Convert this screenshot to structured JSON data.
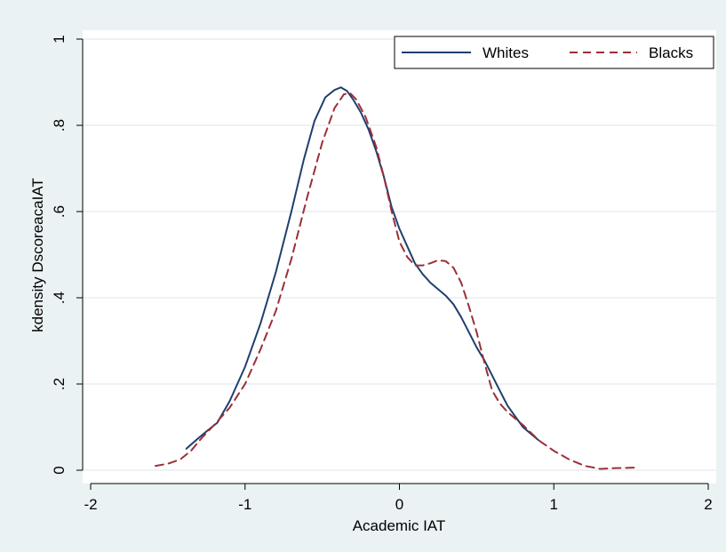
{
  "chart_data": {
    "type": "line",
    "title": "",
    "xlabel": "Academic IAT",
    "ylabel": "kdensity DscoreacaIAT",
    "xlim": [
      -2,
      2
    ],
    "ylim": [
      0,
      1
    ],
    "xticks": [
      {
        "value": -2,
        "label": "-2"
      },
      {
        "value": -1,
        "label": "-1"
      },
      {
        "value": 0,
        "label": "0"
      },
      {
        "value": 1,
        "label": "1"
      },
      {
        "value": 2,
        "label": "2"
      }
    ],
    "yticks": [
      {
        "value": 0,
        "label": "0"
      },
      {
        "value": 0.2,
        "label": ".2"
      },
      {
        "value": 0.4,
        "label": ".4"
      },
      {
        "value": 0.6,
        "label": ".6"
      },
      {
        "value": 0.8,
        "label": ".8"
      },
      {
        "value": 1,
        "label": "1"
      }
    ],
    "grid": "horizontal",
    "legend_position": "top-right",
    "series": [
      {
        "name": "Whites",
        "color": "#1f3f6e",
        "dash": "solid",
        "x": [
          -1.38,
          -1.3,
          -1.25,
          -1.18,
          -1.1,
          -1.0,
          -0.9,
          -0.8,
          -0.7,
          -0.62,
          -0.55,
          -0.48,
          -0.42,
          -0.38,
          -0.34,
          -0.3,
          -0.25,
          -0.2,
          -0.15,
          -0.1,
          -0.05,
          0.0,
          0.05,
          0.1,
          0.15,
          0.2,
          0.25,
          0.3,
          0.35,
          0.4,
          0.45,
          0.5,
          0.55,
          0.6,
          0.65,
          0.7,
          0.75,
          0.8,
          0.85,
          0.9
        ],
        "y": [
          0.05,
          0.075,
          0.09,
          0.11,
          0.16,
          0.24,
          0.34,
          0.46,
          0.6,
          0.72,
          0.81,
          0.865,
          0.882,
          0.888,
          0.88,
          0.86,
          0.83,
          0.79,
          0.74,
          0.68,
          0.61,
          0.56,
          0.52,
          0.48,
          0.455,
          0.435,
          0.42,
          0.405,
          0.385,
          0.355,
          0.32,
          0.285,
          0.255,
          0.22,
          0.185,
          0.15,
          0.125,
          0.1,
          0.085,
          0.07
        ]
      },
      {
        "name": "Blacks",
        "color": "#9b2f38",
        "dash": "dashed",
        "x": [
          -1.58,
          -1.5,
          -1.42,
          -1.35,
          -1.28,
          -1.2,
          -1.1,
          -1.0,
          -0.9,
          -0.8,
          -0.7,
          -0.6,
          -0.5,
          -0.42,
          -0.36,
          -0.32,
          -0.28,
          -0.22,
          -0.15,
          -0.1,
          -0.05,
          0.0,
          0.05,
          0.1,
          0.15,
          0.2,
          0.25,
          0.3,
          0.35,
          0.4,
          0.45,
          0.5,
          0.55,
          0.6,
          0.65,
          0.7,
          0.75,
          0.8,
          0.9,
          1.0,
          1.1,
          1.2,
          1.3,
          1.4,
          1.53
        ],
        "y": [
          0.01,
          0.015,
          0.025,
          0.045,
          0.075,
          0.105,
          0.145,
          0.2,
          0.28,
          0.37,
          0.49,
          0.63,
          0.76,
          0.84,
          0.872,
          0.875,
          0.86,
          0.82,
          0.75,
          0.68,
          0.6,
          0.53,
          0.495,
          0.475,
          0.475,
          0.48,
          0.487,
          0.485,
          0.47,
          0.435,
          0.38,
          0.32,
          0.25,
          0.185,
          0.155,
          0.135,
          0.12,
          0.105,
          0.07,
          0.045,
          0.025,
          0.01,
          0.003,
          0.005,
          0.006
        ]
      }
    ]
  }
}
